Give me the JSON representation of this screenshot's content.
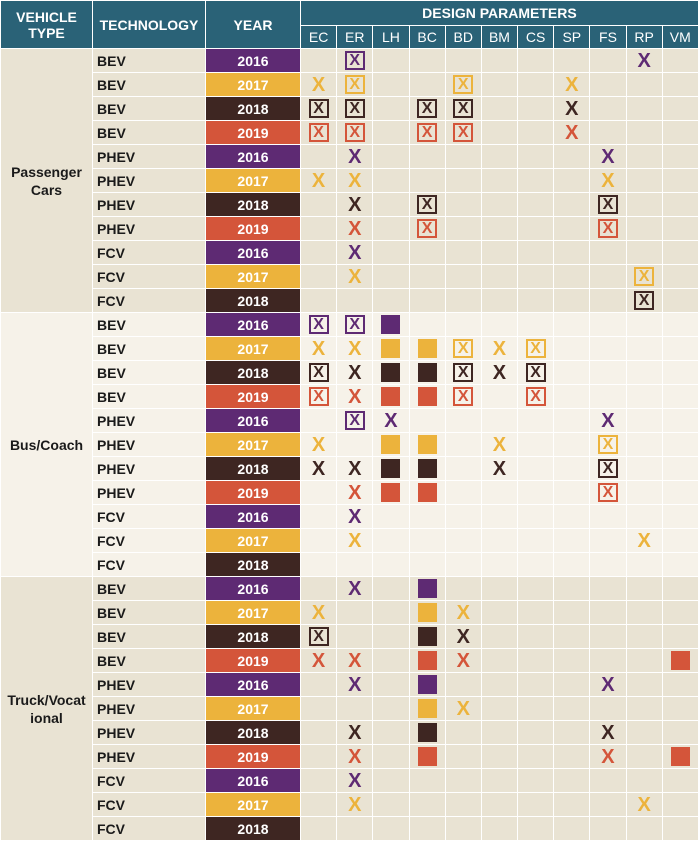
{
  "headers": {
    "vehicle_type": "VEHICLE TYPE",
    "technology": "TECHNOLOGY",
    "year": "YEAR",
    "design_parameters": "DESIGN PARAMETERS"
  },
  "params": [
    "EC",
    "ER",
    "LH",
    "BC",
    "BD",
    "BM",
    "CS",
    "SP",
    "FS",
    "RP",
    "VM"
  ],
  "colors": {
    "2016": "#5e2a73",
    "2017": "#ecb33c",
    "2018": "#3e2622",
    "2019": "#d4553a",
    "bg_dark": "#e9e3d3",
    "bg_light": "#f6f2e9"
  },
  "legend_codes": {
    "x": "x mark",
    "b": "boxed x mark",
    "s": "filled square"
  },
  "groups": [
    {
      "label": "Passenger Cars",
      "bg": "dark",
      "rows": [
        {
          "tech": "BEV",
          "year": "2016",
          "cells": [
            "",
            "b",
            "",
            "",
            "",
            "",
            "",
            "",
            "",
            "x",
            ""
          ]
        },
        {
          "tech": "BEV",
          "year": "2017",
          "cells": [
            "x",
            "b",
            "",
            "",
            "b",
            "",
            "",
            "x",
            "",
            "",
            ""
          ]
        },
        {
          "tech": "BEV",
          "year": "2018",
          "cells": [
            "b",
            "b",
            "",
            "b",
            "b",
            "",
            "",
            "x",
            "",
            "",
            ""
          ]
        },
        {
          "tech": "BEV",
          "year": "2019",
          "cells": [
            "b",
            "b",
            "",
            "b",
            "b",
            "",
            "",
            "x",
            "",
            "",
            ""
          ]
        },
        {
          "tech": "PHEV",
          "year": "2016",
          "cells": [
            "",
            "x",
            "",
            "",
            "",
            "",
            "",
            "",
            "x",
            "",
            ""
          ]
        },
        {
          "tech": "PHEV",
          "year": "2017",
          "cells": [
            "x",
            "x",
            "",
            "",
            "",
            "",
            "",
            "",
            "x",
            "",
            ""
          ]
        },
        {
          "tech": "PHEV",
          "year": "2018",
          "cells": [
            "",
            "x",
            "",
            "b",
            "",
            "",
            "",
            "",
            "b",
            "",
            ""
          ]
        },
        {
          "tech": "PHEV",
          "year": "2019",
          "cells": [
            "",
            "x",
            "",
            "b",
            "",
            "",
            "",
            "",
            "b",
            "",
            ""
          ]
        },
        {
          "tech": "FCV",
          "year": "2016",
          "cells": [
            "",
            "x",
            "",
            "",
            "",
            "",
            "",
            "",
            "",
            "",
            ""
          ]
        },
        {
          "tech": "FCV",
          "year": "2017",
          "cells": [
            "",
            "x",
            "",
            "",
            "",
            "",
            "",
            "",
            "",
            "b",
            ""
          ]
        },
        {
          "tech": "FCV",
          "year": "2018",
          "cells": [
            "",
            "",
            "",
            "",
            "",
            "",
            "",
            "",
            "",
            "b",
            ""
          ]
        }
      ]
    },
    {
      "label": "Bus/Coach",
      "bg": "light",
      "rows": [
        {
          "tech": "BEV",
          "year": "2016",
          "cells": [
            "b",
            "b",
            "s",
            "",
            "",
            "",
            "",
            "",
            "",
            "",
            ""
          ]
        },
        {
          "tech": "BEV",
          "year": "2017",
          "cells": [
            "x",
            "x",
            "s",
            "s",
            "b",
            "x",
            "b",
            "",
            "",
            "",
            ""
          ]
        },
        {
          "tech": "BEV",
          "year": "2018",
          "cells": [
            "b",
            "x",
            "s",
            "s",
            "b",
            "x",
            "b",
            "",
            "",
            "",
            ""
          ]
        },
        {
          "tech": "BEV",
          "year": "2019",
          "cells": [
            "b",
            "x",
            "s",
            "s",
            "b",
            "",
            "b",
            "",
            "",
            "",
            ""
          ]
        },
        {
          "tech": "PHEV",
          "year": "2016",
          "cells": [
            "",
            "b",
            "x",
            "",
            "",
            "",
            "",
            "",
            "x",
            "",
            ""
          ]
        },
        {
          "tech": "PHEV",
          "year": "2017",
          "cells": [
            "x",
            "",
            "s",
            "s",
            "",
            "x",
            "",
            "",
            "b",
            "",
            ""
          ]
        },
        {
          "tech": "PHEV",
          "year": "2018",
          "cells": [
            "x",
            "x",
            "s",
            "s",
            "",
            "x",
            "",
            "",
            "b",
            "",
            ""
          ]
        },
        {
          "tech": "PHEV",
          "year": "2019",
          "cells": [
            "",
            "x",
            "s",
            "s",
            "",
            "",
            "",
            "",
            "b",
            "",
            ""
          ]
        },
        {
          "tech": "FCV",
          "year": "2016",
          "cells": [
            "",
            "x",
            "",
            "",
            "",
            "",
            "",
            "",
            "",
            "",
            ""
          ]
        },
        {
          "tech": "FCV",
          "year": "2017",
          "cells": [
            "",
            "x",
            "",
            "",
            "",
            "",
            "",
            "",
            "",
            "x",
            ""
          ]
        },
        {
          "tech": "FCV",
          "year": "2018",
          "cells": [
            "",
            "",
            "",
            "",
            "",
            "",
            "",
            "",
            "",
            "",
            ""
          ]
        }
      ]
    },
    {
      "label": "Truck/Vocational",
      "label_display": "Truck/Vocat ional",
      "bg": "dark",
      "rows": [
        {
          "tech": "BEV",
          "year": "2016",
          "cells": [
            "",
            "x",
            "",
            "s",
            "",
            "",
            "",
            "",
            "",
            "",
            ""
          ]
        },
        {
          "tech": "BEV",
          "year": "2017",
          "cells": [
            "x",
            "",
            "",
            "s",
            "x",
            "",
            "",
            "",
            "",
            "",
            ""
          ]
        },
        {
          "tech": "BEV",
          "year": "2018",
          "cells": [
            "b",
            "",
            "",
            "s",
            "x",
            "",
            "",
            "",
            "",
            "",
            ""
          ]
        },
        {
          "tech": "BEV",
          "year": "2019",
          "cells": [
            "x",
            "x",
            "",
            "s",
            "x",
            "",
            "",
            "",
            "",
            "",
            "s"
          ]
        },
        {
          "tech": "PHEV",
          "year": "2016",
          "cells": [
            "",
            "x",
            "",
            "s",
            "",
            "",
            "",
            "",
            "x",
            "",
            ""
          ]
        },
        {
          "tech": "PHEV",
          "year": "2017",
          "cells": [
            "",
            "",
            "",
            "s",
            "x",
            "",
            "",
            "",
            "",
            "",
            ""
          ]
        },
        {
          "tech": "PHEV",
          "year": "2018",
          "cells": [
            "",
            "x",
            "",
            "s",
            "",
            "",
            "",
            "",
            "x",
            "",
            ""
          ]
        },
        {
          "tech": "PHEV",
          "year": "2019",
          "cells": [
            "",
            "x",
            "",
            "s",
            "",
            "",
            "",
            "",
            "x",
            "",
            "s"
          ]
        },
        {
          "tech": "FCV",
          "year": "2016",
          "cells": [
            "",
            "x",
            "",
            "",
            "",
            "",
            "",
            "",
            "",
            "",
            ""
          ]
        },
        {
          "tech": "FCV",
          "year": "2017",
          "cells": [
            "",
            "x",
            "",
            "",
            "",
            "",
            "",
            "",
            "",
            "x",
            ""
          ]
        },
        {
          "tech": "FCV",
          "year": "2018",
          "cells": [
            "",
            "",
            "",
            "",
            "",
            "",
            "",
            "",
            "",
            "",
            ""
          ]
        }
      ]
    }
  ]
}
